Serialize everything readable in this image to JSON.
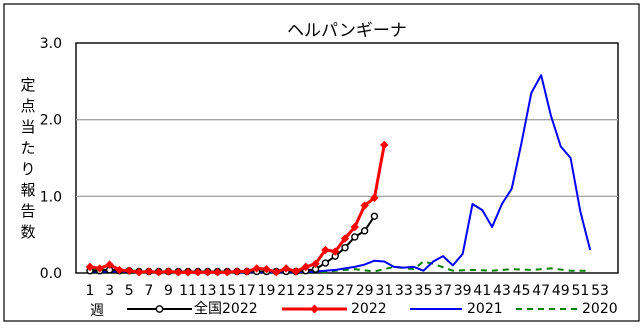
{
  "chart_data": {
    "type": "line",
    "title": "ヘルパンギーナ",
    "ylabel_chars": [
      "定",
      "点",
      "当",
      "た",
      "り",
      "報",
      "告",
      "数"
    ],
    "xlabel": "週",
    "ylim": [
      0,
      3
    ],
    "yticks": [
      "0.0",
      "1.0",
      "2.0",
      "3.0"
    ],
    "xlim": [
      1,
      53
    ],
    "xticks": [
      "1",
      "3",
      "5",
      "7",
      "9",
      "11",
      "13",
      "15",
      "17",
      "19",
      "21",
      "23",
      "25",
      "27",
      "29",
      "31",
      "33",
      "35",
      "37",
      "39",
      "41",
      "43",
      "45",
      "47",
      "49",
      "51",
      "53"
    ],
    "grid": true,
    "legend_position": "bottom",
    "series": [
      {
        "name": "全国2022",
        "color": "#000000",
        "marker": "open-circle",
        "x": [
          1,
          2,
          3,
          4,
          5,
          6,
          7,
          8,
          9,
          10,
          11,
          12,
          13,
          14,
          15,
          16,
          17,
          18,
          19,
          20,
          21,
          22,
          23,
          24,
          25,
          26,
          27,
          28,
          29,
          30
        ],
        "y": [
          0.03,
          0.03,
          0.04,
          0.03,
          0.03,
          0.02,
          0.02,
          0.02,
          0.02,
          0.02,
          0.02,
          0.02,
          0.02,
          0.02,
          0.02,
          0.02,
          0.02,
          0.02,
          0.02,
          0.02,
          0.02,
          0.02,
          0.03,
          0.05,
          0.13,
          0.22,
          0.33,
          0.47,
          0.55,
          0.74
        ]
      },
      {
        "name": "2022",
        "color": "#ff0000",
        "marker": "diamond",
        "x": [
          1,
          2,
          3,
          4,
          5,
          6,
          7,
          8,
          9,
          10,
          11,
          12,
          13,
          14,
          15,
          16,
          17,
          18,
          19,
          20,
          21,
          22,
          23,
          24,
          25,
          26,
          27,
          28,
          29,
          30,
          31
        ],
        "y": [
          0.08,
          0.06,
          0.11,
          0.04,
          0.03,
          0.01,
          0.02,
          0.01,
          0.02,
          0.01,
          0.01,
          0.01,
          0.01,
          0.01,
          0.01,
          0.02,
          0.02,
          0.06,
          0.05,
          0.01,
          0.06,
          0.02,
          0.08,
          0.12,
          0.3,
          0.28,
          0.45,
          0.6,
          0.88,
          0.98,
          1.67
        ]
      },
      {
        "name": "2021",
        "color": "#0000ff",
        "marker": "none",
        "x": [
          1,
          5,
          10,
          15,
          20,
          22,
          24,
          25,
          26,
          27,
          28,
          29,
          30,
          31,
          32,
          33,
          34,
          35,
          36,
          37,
          38,
          39,
          40,
          41,
          42,
          43,
          44,
          45,
          46,
          47,
          48,
          49,
          50,
          51,
          52
        ],
        "y": [
          0.02,
          0.02,
          0.01,
          0.01,
          0.01,
          0.01,
          0.02,
          0.03,
          0.04,
          0.06,
          0.08,
          0.11,
          0.16,
          0.15,
          0.08,
          0.07,
          0.08,
          0.03,
          0.15,
          0.22,
          0.1,
          0.25,
          0.9,
          0.82,
          0.6,
          0.9,
          1.1,
          1.7,
          2.35,
          2.58,
          2.05,
          1.65,
          1.5,
          0.8,
          0.3
        ]
      },
      {
        "name": "2020",
        "color": "#008000",
        "marker": "none",
        "dashed": true,
        "x": [
          1,
          3,
          5,
          10,
          15,
          20,
          24,
          25,
          26,
          28,
          30,
          32,
          34,
          35,
          36,
          38,
          40,
          42,
          44,
          46,
          48,
          50,
          52
        ],
        "y": [
          0.05,
          0.04,
          0.03,
          0.02,
          0.02,
          0.02,
          0.02,
          0.01,
          0.03,
          0.05,
          0.02,
          0.08,
          0.05,
          0.15,
          0.12,
          0.03,
          0.04,
          0.03,
          0.05,
          0.04,
          0.06,
          0.03,
          0.03
        ]
      }
    ]
  }
}
